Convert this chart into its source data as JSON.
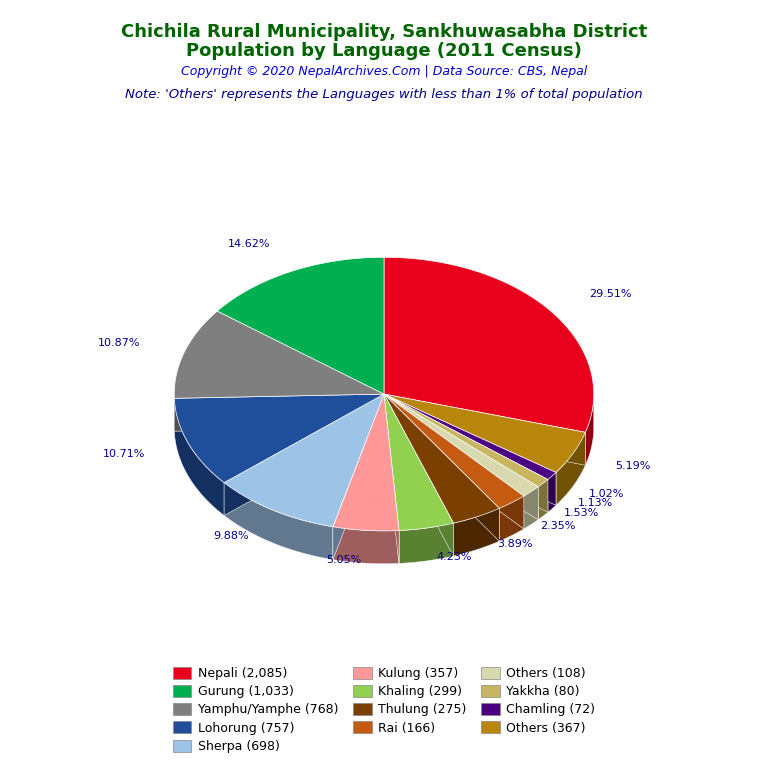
{
  "title_line1": "Chichila Rural Municipality, Sankhuwasabha District",
  "title_line2": "Population by Language (2011 Census)",
  "title_color": "#006400",
  "copyright_text": "Copyright © 2020 NepalArchives.Com | Data Source: CBS, Nepal",
  "copyright_color": "#0000CD",
  "note_text": "Note: 'Others' represents the Languages with less than 1% of total population",
  "note_color": "#00008B",
  "slices": [
    {
      "label": "Nepali (2,085)",
      "value": 2085,
      "pct": 29.51,
      "color": "#E8001C"
    },
    {
      "label": "Gurung (1,033)",
      "value": 1033,
      "pct": 14.62,
      "color": "#00B050"
    },
    {
      "label": "Yamphu/Yamphe (768)",
      "value": 768,
      "pct": 10.87,
      "color": "#7F7F7F"
    },
    {
      "label": "Lohorung (757)",
      "value": 757,
      "pct": 10.71,
      "color": "#1F4E9B"
    },
    {
      "label": "Sherpa (698)",
      "value": 698,
      "pct": 9.88,
      "color": "#9DC3E6"
    },
    {
      "label": "Kulung (357)",
      "value": 357,
      "pct": 5.05,
      "color": "#FF9999"
    },
    {
      "label": "Khaling (299)",
      "value": 299,
      "pct": 4.23,
      "color": "#92D050"
    },
    {
      "label": "Thulung (275)",
      "value": 275,
      "pct": 3.89,
      "color": "#7B3F00"
    },
    {
      "label": "Rai (166)",
      "value": 166,
      "pct": 2.35,
      "color": "#C55A11"
    },
    {
      "label": "Others (108)",
      "value": 108,
      "pct": 1.53,
      "color": "#D9D9B0"
    },
    {
      "label": "Yakkha (80)",
      "value": 80,
      "pct": 1.13,
      "color": "#C8B560"
    },
    {
      "label": "Chamling (72)",
      "value": 72,
      "pct": 1.02,
      "color": "#4B0082"
    },
    {
      "label": "Others (367)",
      "value": 367,
      "pct": 5.19,
      "color": "#B8860B"
    }
  ],
  "label_color": "#00008B",
  "background_color": "#FFFFFF",
  "pie_order": [
    0,
    12,
    11,
    10,
    9,
    8,
    7,
    6,
    5,
    4,
    3,
    2,
    1
  ],
  "legend_order": [
    0,
    1,
    2,
    3,
    4,
    5,
    6,
    7,
    8,
    9,
    10,
    11,
    12
  ]
}
